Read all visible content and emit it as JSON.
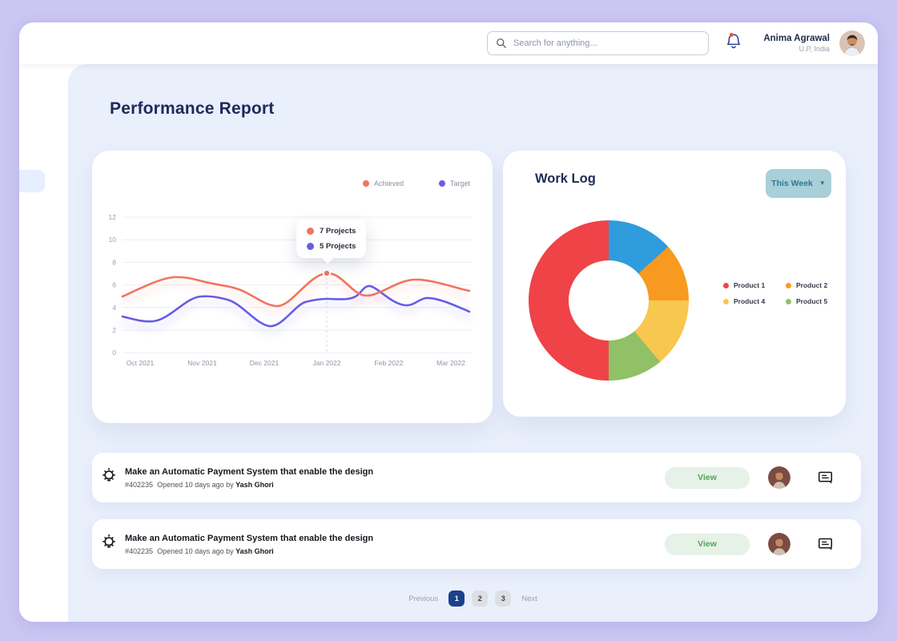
{
  "header": {
    "search": {
      "placeholder": "Search for anything...",
      "icon": "magnifier"
    },
    "notifications": {
      "icon": "bell",
      "has_unread": true
    },
    "user": {
      "name": "Anima Agrawal",
      "location": "U.P, India"
    }
  },
  "page": {
    "title": "Performance Report"
  },
  "chart_data": [
    {
      "type": "line",
      "x": [
        "Oct 2021",
        "Nov 2021",
        "Dec 2021",
        "Jan 2022",
        "Feb 2022",
        "Mar 2022"
      ],
      "series": [
        {
          "name": "Achieved",
          "color": "#F4735C",
          "values": [
            5.0,
            6.2,
            4.6,
            7.0,
            6.2,
            5.4
          ]
        },
        {
          "name": "Target",
          "color": "#675CE8",
          "values": [
            3.2,
            5.0,
            3.0,
            4.8,
            4.2,
            3.6
          ]
        }
      ],
      "ylim": [
        0,
        12
      ],
      "yticks": [
        0,
        2,
        4,
        6,
        8,
        10,
        12
      ],
      "grid": "horizontal",
      "legend_position": "top-right",
      "tooltip": {
        "x": "Jan 2022",
        "items": [
          {
            "label": "7 Projects",
            "color": "#F4735C"
          },
          {
            "label": "5 Projects",
            "color": "#675CE8"
          }
        ]
      }
    },
    {
      "type": "pie",
      "donut": true,
      "title": "Work Log",
      "period": "This Week",
      "slices": [
        {
          "label": "",
          "color": "#2F9CDE",
          "percent": 13.3
        },
        {
          "label": "Product 2",
          "color": "#F79A1F",
          "percent": 11.7
        },
        {
          "label": "Product 4",
          "color": "#F8C74F",
          "percent": 13.9
        },
        {
          "label": "Product 5",
          "color": "#90C166",
          "percent": 11.1
        },
        {
          "label": "Product 1",
          "color": "#EF4348",
          "percent": 50.0
        }
      ],
      "legend": [
        {
          "label": "Product 1",
          "color": "#EF4348"
        },
        {
          "label": "Product 2",
          "color": "#F79A1F"
        },
        {
          "label": "Product 4",
          "color": "#F8C74F"
        },
        {
          "label": "Product 5",
          "color": "#90C166"
        }
      ],
      "legend_position": "right"
    }
  ],
  "tasks": [
    {
      "icon": "lightbulb",
      "title": "Make an Automatic Payment System that enable the design",
      "id": "#402235",
      "opened": "Opened 10 days ago by",
      "author": "Yash Ghori",
      "action": "View"
    },
    {
      "icon": "lightbulb",
      "title": "Make an Automatic Payment System that enable the design",
      "id": "#402235",
      "opened": "Opened 10 days ago by",
      "author": "Yash Ghori",
      "action": "View"
    }
  ],
  "pagination": {
    "previous": "Previous",
    "pages": [
      "1",
      "2",
      "3"
    ],
    "active_page": "1",
    "next": "Next"
  }
}
